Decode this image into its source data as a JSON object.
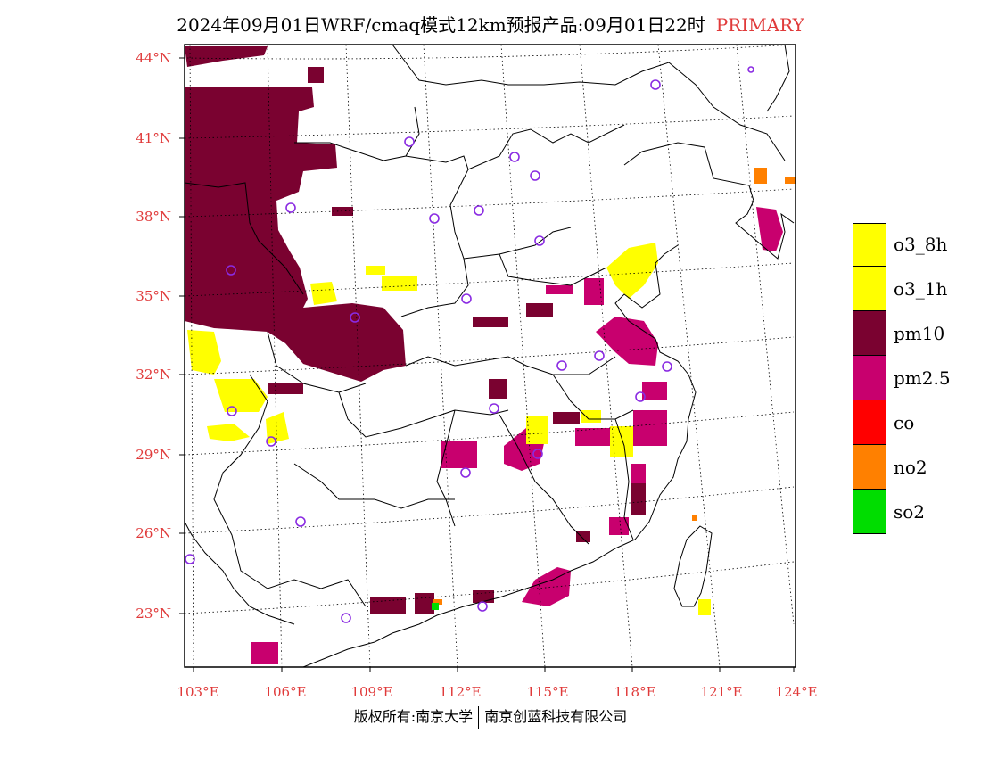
{
  "title": {
    "main": "2024年09月01日WRF/cmaq模式12km预报产品:09月01日22时",
    "tag": "PRIMARY",
    "tag_color": "#e03a3a"
  },
  "map": {
    "lat_labels": [
      "44°N",
      "41°N",
      "38°N",
      "35°N",
      "32°N",
      "29°N",
      "26°N",
      "23°N"
    ],
    "lon_labels": [
      "103°E",
      "106°E",
      "109°E",
      "112°E",
      "115°E",
      "118°E",
      "121°E",
      "124°E"
    ],
    "label_color": "#e03a3a",
    "station_marker_color": "#8a2be2"
  },
  "legend": {
    "items": [
      {
        "label": "o3_8h",
        "color": "#ffff00"
      },
      {
        "label": "o3_1h",
        "color": "#ffff00"
      },
      {
        "label": "pm10",
        "color": "#7a0230"
      },
      {
        "label": "pm2.5",
        "color": "#c8006e"
      },
      {
        "label": "co",
        "color": "#ff0000"
      },
      {
        "label": "no2",
        "color": "#ff8000"
      },
      {
        "label": "so2",
        "color": "#00dd00"
      }
    ]
  },
  "copyright": {
    "left": "版权所有:南京大学",
    "right": "南京创蓝科技有限公司"
  }
}
